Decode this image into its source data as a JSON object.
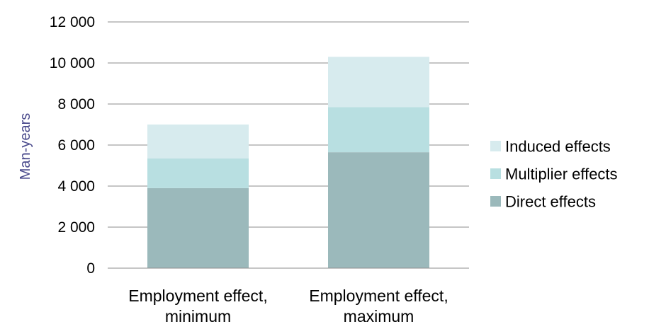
{
  "chart_data": {
    "type": "bar",
    "stacked": true,
    "categories": [
      [
        "Employment effect,",
        "minimum"
      ],
      [
        "Employment effect,",
        "maximum"
      ]
    ],
    "series": [
      {
        "name": "Direct effects",
        "values": [
          3900,
          5650
        ],
        "color": "#9bb9bb"
      },
      {
        "name": "Multiplier effects",
        "values": [
          1450,
          2200
        ],
        "color": "#b8dfe1"
      },
      {
        "name": "Induced effects",
        "values": [
          1650,
          2450
        ],
        "color": "#d7ebee"
      }
    ],
    "ylabel": "Man-years",
    "ylim": [
      0,
      12000
    ],
    "yticks": [
      0,
      2000,
      4000,
      6000,
      8000,
      10000,
      12000
    ],
    "ytick_labels": [
      "0",
      "2 000",
      "4 000",
      "6 000",
      "8 000",
      "10 000",
      "12 000"
    ],
    "grid": true,
    "legend": {
      "placement": "right",
      "order": [
        "Induced effects",
        "Multiplier effects",
        "Direct effects"
      ]
    }
  }
}
